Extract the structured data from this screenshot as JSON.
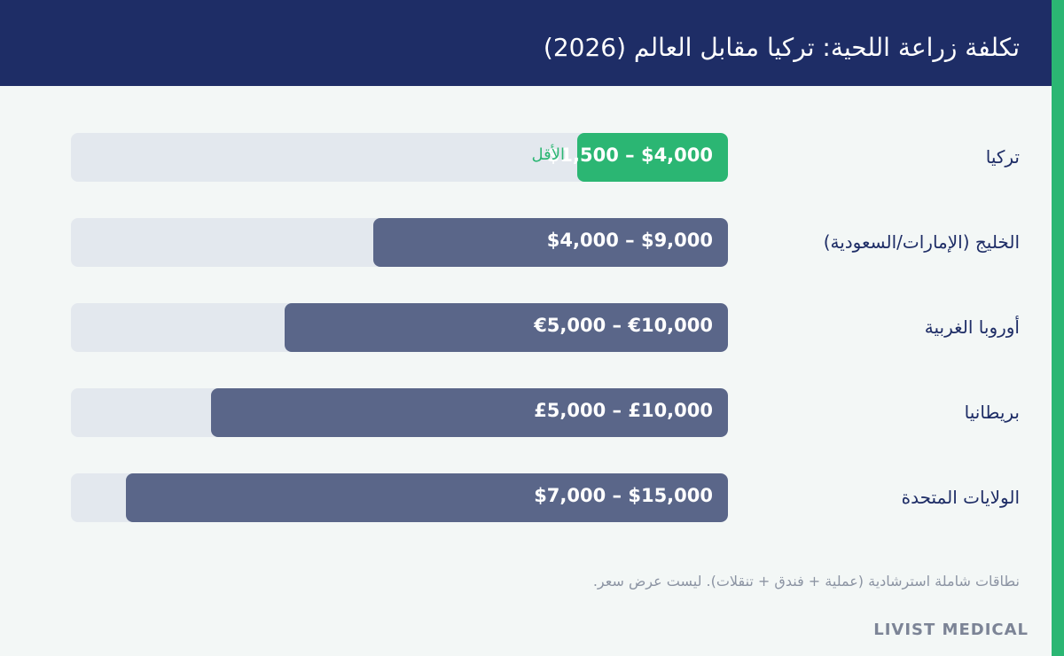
{
  "header": {
    "title": "تكلفة زراعة اللحية: تركيا مقابل العالم (2026)"
  },
  "chart_data": {
    "type": "bar",
    "orientation": "horizontal",
    "title": "تكلفة زراعة اللحية: تركيا مقابل العالم (2026)",
    "categories": [
      "تركيا",
      "الخليج (الإمارات/السعودية)",
      "أوروبا الغربية",
      "بريطانيا",
      "الولايات المتحدة"
    ],
    "value_labels": [
      "$1,500 – $4,000",
      "$4,000 – $9,000",
      "€5,000 – €10,000",
      "£5,000 – £10,000",
      "$7,000 – $15,000"
    ],
    "ranges": [
      [
        1500,
        4000
      ],
      [
        4000,
        9000
      ],
      [
        5000,
        10000
      ],
      [
        5000,
        10000
      ],
      [
        7000,
        15000
      ]
    ],
    "currencies": [
      "USD",
      "USD",
      "EUR",
      "GBP",
      "USD"
    ],
    "relative_bar_length": [
      0.23,
      0.54,
      0.675,
      0.787,
      0.917
    ],
    "highlight_index": 0,
    "highlight_badge": "الأقل",
    "colors": {
      "highlight": "#2bb673",
      "bar": "#5a6689",
      "track": "#e3e8ee",
      "label": "#1e2d66"
    }
  },
  "footer": {
    "note": "نطاقات شاملة استرشادية (عملية + فندق + تنقلات). ليست عرض سعر.",
    "brand": "LIVIST MEDICAL"
  }
}
